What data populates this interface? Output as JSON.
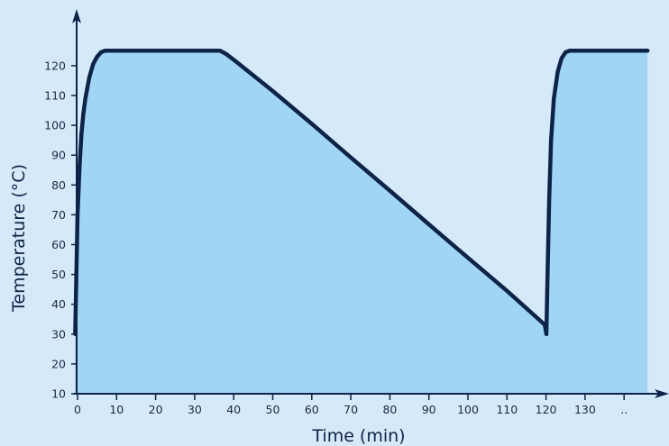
{
  "chart_data": {
    "type": "area",
    "xlabel": "Time (min)",
    "ylabel": "Temperature (°C)",
    "xlim": [
      0,
      145
    ],
    "ylim": [
      10,
      129
    ],
    "xticks": [
      "0",
      "10",
      "20",
      "30",
      "40",
      "50",
      "60",
      "70",
      "80",
      "90",
      "100",
      "110",
      "120",
      "130",
      ".."
    ],
    "yticks": [
      10,
      20,
      30,
      40,
      50,
      60,
      70,
      80,
      90,
      100,
      110,
      120
    ],
    "grid": false,
    "legend": "none",
    "series": [
      {
        "x": [
          -0.6,
          -0.3,
          0,
          0.5,
          1,
          1.5,
          2,
          3,
          4,
          5,
          6,
          7,
          36.5,
          38,
          40,
          50,
          60,
          70,
          80,
          90,
          100,
          110,
          119.7,
          120.1,
          120.4,
          120.8,
          121.3,
          122,
          123,
          124,
          125,
          126,
          127,
          146
        ],
        "y": [
          30,
          50,
          70,
          86,
          97,
          104,
          109,
          116,
          120.5,
          123,
          124.5,
          125,
          125,
          124,
          122,
          111.5,
          100.5,
          89.2,
          78.1,
          66.8,
          55.6,
          44.5,
          33.1,
          30,
          50,
          75,
          95,
          109,
          118,
          122.5,
          124.5,
          125,
          125,
          125
        ]
      }
    ]
  },
  "colors": {
    "background": "#d4eaf9",
    "fill": "#a0d5f4",
    "line": "#0d2347",
    "axis": "#0d2347",
    "text": "#1b2a44"
  }
}
